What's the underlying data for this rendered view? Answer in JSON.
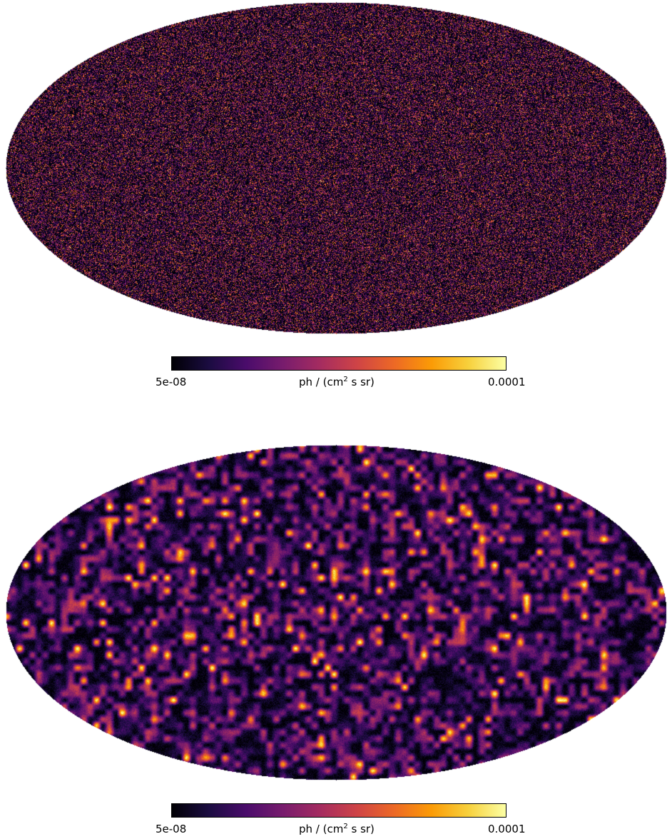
{
  "figure": {
    "colormap": "inferno",
    "colormap_stops": [
      "#000004",
      "#1b0c41",
      "#4a0c6b",
      "#781c6d",
      "#a52c60",
      "#cf4446",
      "#ed6925",
      "#fb9b06",
      "#f7d13d",
      "#fcffa4"
    ],
    "maps": [
      {
        "projection": "mollweide",
        "texture": "fine-grained noise",
        "colorbar": {
          "min_label": "5e-08",
          "max_label": "0.0001",
          "unit_prefix": "ph / (cm",
          "unit_exponent": "2",
          "unit_suffix": " s sr)"
        }
      },
      {
        "projection": "mollweide",
        "texture": "smoothed noise with bright blobs",
        "colorbar": {
          "min_label": "5e-08",
          "max_label": "0.0001",
          "unit_prefix": "ph / (cm",
          "unit_exponent": "2",
          "unit_suffix": " s sr)"
        }
      }
    ]
  }
}
